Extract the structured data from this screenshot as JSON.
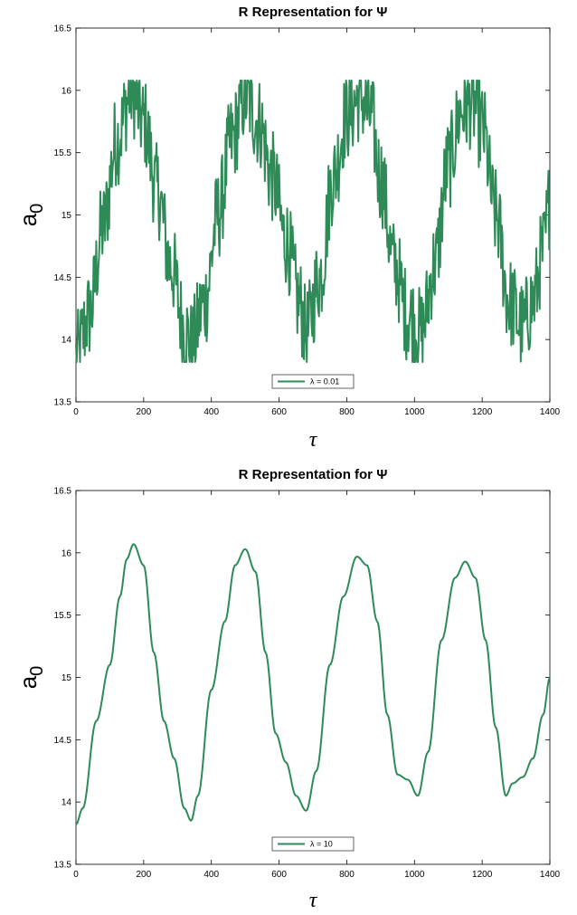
{
  "chart_data": [
    {
      "type": "line",
      "title": "R Representation for Ψ",
      "xlabel": "τ",
      "ylabel_main": "a",
      "ylabel_sub": "0",
      "xlim": [
        0,
        1400
      ],
      "ylim": [
        13.5,
        16.5
      ],
      "xticks": [
        "0",
        "200",
        "400",
        "600",
        "800",
        "1000",
        "1200",
        "1400"
      ],
      "yticks": [
        "13.5",
        "14",
        "14.5",
        "15",
        "15.5",
        "16",
        "16.5"
      ],
      "legend_position": "bottom-center",
      "color": "#2e8b57",
      "series": [
        {
          "name": "λ = 0.01",
          "noisy": true,
          "x": [
            0,
            40,
            80,
            120,
            165,
            200,
            240,
            280,
            320,
            340,
            380,
            420,
            460,
            500,
            540,
            580,
            620,
            660,
            680,
            720,
            760,
            800,
            840,
            870,
            900,
            940,
            980,
            1020,
            1060,
            1100,
            1140,
            1170,
            1200,
            1240,
            1280,
            1320,
            1350,
            1380,
            1400
          ],
          "y": [
            13.85,
            14.2,
            14.9,
            15.6,
            16.0,
            15.75,
            15.2,
            14.6,
            14.1,
            13.95,
            14.3,
            15.0,
            15.6,
            15.95,
            15.75,
            15.3,
            14.8,
            14.3,
            14.05,
            14.5,
            15.3,
            15.8,
            15.95,
            15.8,
            15.3,
            14.6,
            14.2,
            14.05,
            14.6,
            15.4,
            15.85,
            15.9,
            15.7,
            15.0,
            14.3,
            14.1,
            14.3,
            14.7,
            15.1
          ]
        },
        {
          "name": "λ = 10",
          "noisy": false,
          "x": [
            0,
            20,
            60,
            100,
            130,
            150,
            170,
            200,
            230,
            260,
            290,
            320,
            340,
            360,
            400,
            440,
            470,
            500,
            530,
            560,
            590,
            620,
            650,
            680,
            710,
            750,
            790,
            830,
            860,
            890,
            920,
            950,
            980,
            1010,
            1040,
            1080,
            1120,
            1150,
            1180,
            1210,
            1240,
            1270,
            1290,
            1320,
            1350,
            1380,
            1400
          ],
          "y": [
            13.82,
            13.95,
            14.65,
            15.1,
            15.65,
            15.95,
            16.07,
            15.9,
            15.2,
            14.65,
            14.35,
            13.95,
            13.85,
            14.05,
            14.9,
            15.45,
            15.9,
            16.03,
            15.85,
            15.2,
            14.55,
            14.32,
            14.05,
            13.93,
            14.25,
            15.1,
            15.65,
            15.97,
            15.9,
            15.45,
            14.7,
            14.22,
            14.18,
            14.05,
            14.4,
            15.3,
            15.8,
            15.93,
            15.8,
            15.3,
            14.6,
            14.05,
            14.15,
            14.2,
            14.35,
            14.7,
            15.0
          ]
        }
      ]
    }
  ]
}
